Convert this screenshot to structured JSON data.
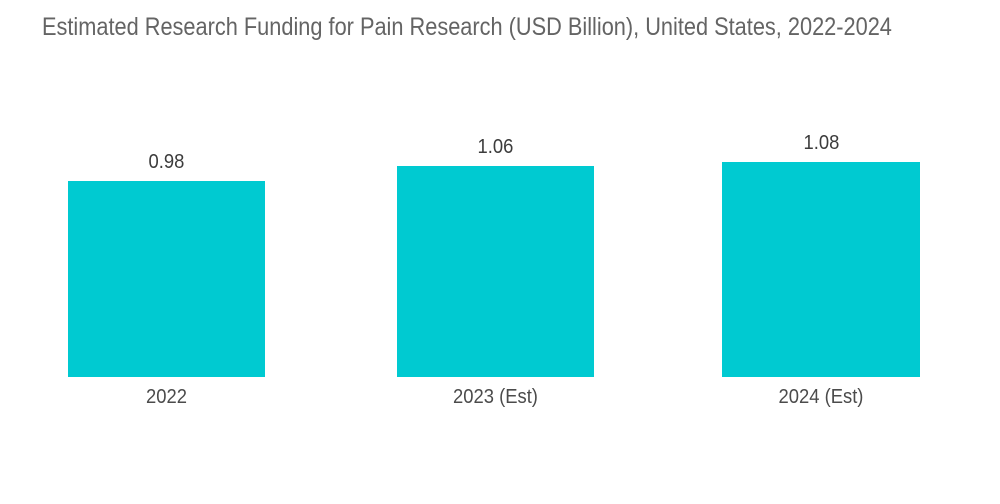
{
  "chart_data": {
    "type": "bar",
    "title": "Estimated Research Funding for Pain Research (USD Billion), United States, 2022-2024",
    "categories": [
      "2022",
      "2023 (Est)",
      "2024 (Est)"
    ],
    "values": [
      0.98,
      1.06,
      1.08
    ],
    "value_labels": [
      "0.98",
      "1.06",
      "1.08"
    ],
    "ylabel": "",
    "xlabel": "",
    "ylim": [
      0,
      1.4
    ],
    "grid": false,
    "legend": false,
    "value_labels_shown": true,
    "axes_shown": false,
    "colors": {
      "background": "#ffffff",
      "bar": "#00cad1",
      "title": "#646464",
      "value_label": "#3c3c3c",
      "category_label": "#4b4b4b"
    }
  }
}
